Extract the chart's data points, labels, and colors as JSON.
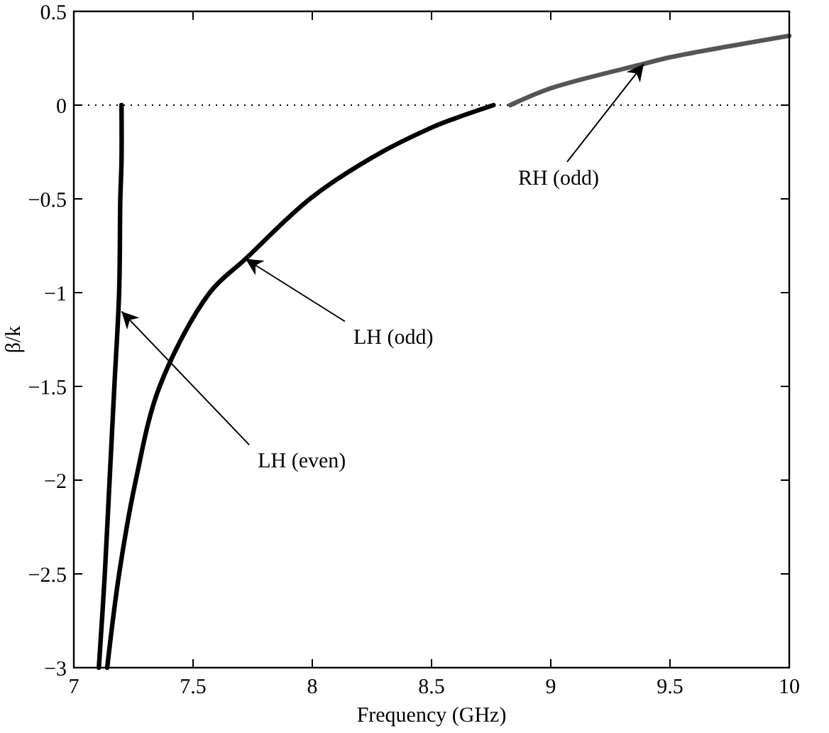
{
  "chart_data": {
    "type": "line",
    "xlabel": "Frequency (GHz)",
    "ylabel": "β/k",
    "xlim": [
      7,
      10
    ],
    "ylim": [
      -3,
      0.5
    ],
    "xticks": [
      7,
      7.5,
      8,
      8.5,
      9,
      9.5,
      10
    ],
    "yticks": [
      {
        "value": -3,
        "label": "−3"
      },
      {
        "value": -2.5,
        "label": "−2.5"
      },
      {
        "value": -2,
        "label": "−2"
      },
      {
        "value": -1.5,
        "label": "−1.5"
      },
      {
        "value": -1,
        "label": "−1"
      },
      {
        "value": -0.5,
        "label": "−0.5"
      },
      0,
      0.5
    ],
    "grid": false,
    "line_style": "solid",
    "marker": "none",
    "series": [
      {
        "color": "#000000",
        "x": [
          7.105,
          7.13,
          7.15,
          7.17,
          7.19,
          7.195,
          7.2,
          7.2
        ],
        "values": [
          -3,
          -2.5,
          -2,
          -1.5,
          -1,
          -0.5,
          -0.3,
          0
        ]
      },
      {
        "color": "#000000",
        "x": [
          7.14,
          7.19,
          7.26,
          7.36,
          7.57,
          7.72,
          7.99,
          8.25,
          8.5,
          8.6,
          8.76
        ],
        "values": [
          -3,
          -2.5,
          -2,
          -1.5,
          -1,
          -0.82,
          -0.5,
          -0.28,
          -0.12,
          -0.07,
          0
        ]
      },
      {
        "color": "#555555",
        "x": [
          8.83,
          9,
          9.39,
          9.5,
          10
        ],
        "values": [
          0,
          0.09,
          0.22,
          0.255,
          0.37
        ]
      }
    ],
    "ref_lines": [
      {
        "axis": "y",
        "value": 0,
        "line_style": "dotted",
        "color": "#000000"
      }
    ],
    "annotations": [
      {
        "text": "LH (even)",
        "x": 7.2,
        "y": -1.1
      },
      {
        "text": "LH (odd)",
        "x": 7.72,
        "y": -0.82
      },
      {
        "text": "RH (odd)",
        "x": 9.39,
        "y": 0.22
      }
    ]
  }
}
